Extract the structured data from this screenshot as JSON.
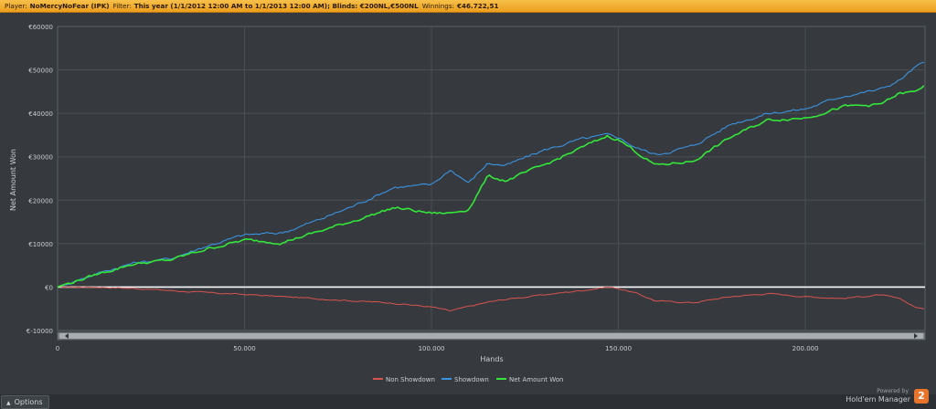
{
  "infobar": {
    "player_label": "Player:",
    "player_value": "NoMercyNoFear (IPK)",
    "filter_label": "Filter:",
    "filter_value": "This year (1/1/2012 12:00 AM to 1/1/2013 12:00 AM); Blinds: €200NL,€500NL",
    "winnings_label": "Winnings:",
    "winnings_value": "€46.722,51"
  },
  "options_label": "Options",
  "branding": {
    "powered_by": "Powered by",
    "product": "Hold'em Manager",
    "badge": "2"
  },
  "colors": {
    "non_showdown": "#d9534f",
    "showdown": "#3a93e0",
    "net_won": "#34e53a",
    "zero_line": "#ffffff",
    "grid": "#4b5055",
    "background": "#363a3e"
  },
  "chart_data": {
    "type": "line",
    "title": "",
    "xlabel": "Hands",
    "ylabel": "Net Amount Won",
    "xlim": [
      0,
      232000
    ],
    "ylim": [
      -10000,
      60000
    ],
    "x_ticks": [
      0,
      50000,
      100000,
      150000,
      200000
    ],
    "x_tick_labels": [
      "0",
      "50.000",
      "100.000",
      "150.000",
      "200.000"
    ],
    "y_ticks": [
      -10000,
      0,
      10000,
      20000,
      30000,
      40000,
      50000,
      60000
    ],
    "y_tick_labels": [
      "€-10000",
      "€0",
      "€10000",
      "€20000",
      "€30000",
      "€40000",
      "€50000",
      "€60000"
    ],
    "grid": true,
    "legend_position": "bottom-center",
    "x": [
      0,
      10000,
      20000,
      30000,
      40000,
      50000,
      60000,
      70000,
      80000,
      90000,
      100000,
      105000,
      110000,
      115000,
      120000,
      130000,
      140000,
      147000,
      150000,
      155000,
      160000,
      170000,
      180000,
      190000,
      200000,
      210000,
      220000,
      225000,
      230000,
      232000
    ],
    "series": [
      {
        "name": "Non Showdown",
        "values": [
          0,
          0,
          -300,
          -800,
          -1300,
          -1700,
          -2200,
          -2700,
          -3200,
          -3700,
          -4600,
          -5500,
          -4500,
          -3500,
          -2800,
          -1800,
          -800,
          0,
          -300,
          -1500,
          -3200,
          -3600,
          -2200,
          -1500,
          -2200,
          -2600,
          -1800,
          -2700,
          -4800,
          -5000
        ]
      },
      {
        "name": "Showdown",
        "values": [
          0,
          3000,
          5500,
          6500,
          9500,
          12000,
          12500,
          15500,
          19000,
          23000,
          23500,
          27000,
          24000,
          28500,
          28000,
          31500,
          34000,
          35000,
          34500,
          32000,
          30500,
          32500,
          37500,
          40000,
          41000,
          44000,
          45500,
          47500,
          51000,
          51500
        ]
      },
      {
        "name": "Net Amount Won",
        "values": [
          0,
          2800,
          5300,
          6200,
          8800,
          10800,
          10300,
          12800,
          15500,
          18300,
          17000,
          17000,
          18000,
          25500,
          24500,
          28000,
          32000,
          34800,
          34000,
          31000,
          28000,
          29000,
          34500,
          38500,
          39000,
          41500,
          42000,
          44500,
          45000,
          46700
        ]
      }
    ]
  }
}
